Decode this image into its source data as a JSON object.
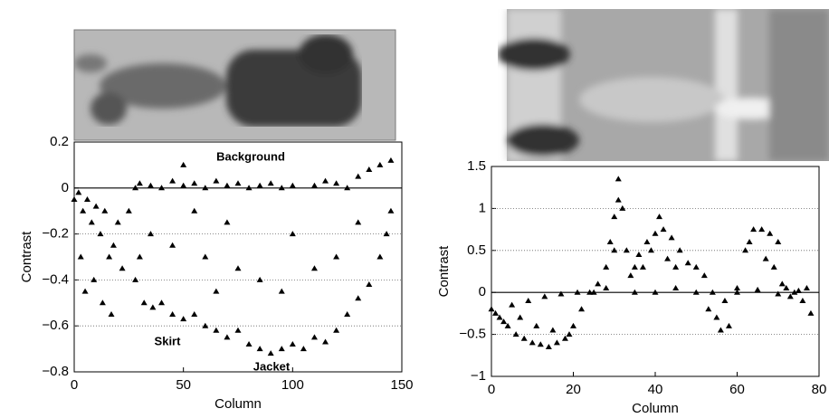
{
  "chart_data": [
    {
      "type": "scatter",
      "xlabel": "Column",
      "ylabel": "Contrast",
      "color": "#000000",
      "marker": "triangle",
      "xlim": [
        0,
        150
      ],
      "xticks": [
        0,
        50,
        100,
        150
      ],
      "ylim": [
        -0.8,
        0.2
      ],
      "yticks": [
        0.2,
        0,
        {
          "value": -0.2,
          "label": "−0.2"
        },
        {
          "value": -0.4,
          "label": "−0.4"
        },
        {
          "value": -0.6,
          "label": "−0.6"
        },
        {
          "value": -0.8,
          "label": "−0.8"
        }
      ],
      "grid": true,
      "annotations": [
        "Background",
        "Skirt",
        "Jacket"
      ],
      "x": [
        0,
        2,
        4,
        6,
        8,
        10,
        12,
        14,
        16,
        18,
        20,
        3,
        5,
        9,
        13,
        17,
        22,
        25,
        28,
        30,
        35,
        40,
        45,
        50,
        55,
        60,
        65,
        70,
        75,
        80,
        85,
        90,
        95,
        100,
        110,
        115,
        120,
        125,
        130,
        135,
        140,
        145,
        28,
        32,
        36,
        40,
        45,
        50,
        55,
        60,
        65,
        70,
        75,
        80,
        85,
        90,
        95,
        100,
        105,
        110,
        115,
        120,
        125,
        130,
        135,
        140,
        143,
        145,
        35,
        45,
        55,
        60,
        70,
        75,
        85,
        95,
        100,
        110,
        120,
        130,
        30,
        50,
        65
      ],
      "values": [
        -0.05,
        -0.02,
        -0.1,
        -0.05,
        -0.15,
        -0.08,
        -0.2,
        -0.1,
        -0.3,
        -0.25,
        -0.15,
        -0.3,
        -0.45,
        -0.4,
        -0.5,
        -0.55,
        -0.35,
        -0.1,
        0,
        0.02,
        0.01,
        0,
        0.03,
        0.01,
        0.02,
        0,
        0.03,
        0.01,
        0.02,
        0,
        0.01,
        0.02,
        0,
        0.01,
        0.01,
        0.03,
        0.02,
        0,
        0.05,
        0.08,
        0.1,
        0.12,
        -0.4,
        -0.5,
        -0.52,
        -0.5,
        -0.55,
        -0.57,
        -0.55,
        -0.6,
        -0.62,
        -0.65,
        -0.62,
        -0.68,
        -0.7,
        -0.72,
        -0.7,
        -0.68,
        -0.7,
        -0.65,
        -0.67,
        -0.62,
        -0.55,
        -0.48,
        -0.42,
        -0.3,
        -0.2,
        -0.1,
        -0.2,
        -0.25,
        -0.1,
        -0.3,
        -0.15,
        -0.35,
        -0.4,
        -0.45,
        -0.2,
        -0.35,
        -0.3,
        -0.15,
        -0.3,
        0.1,
        -0.45
      ]
    },
    {
      "type": "scatter",
      "xlabel": "Column",
      "ylabel": "Contrast",
      "color": "#000000",
      "marker": "triangle",
      "xlim": [
        0,
        80
      ],
      "xticks": [
        0,
        20,
        40,
        60,
        80
      ],
      "ylim": [
        -1,
        1.5
      ],
      "yticks": [
        1.5,
        1,
        0.5,
        0,
        {
          "value": -0.5,
          "label": "−0.5"
        },
        {
          "value": -1,
          "label": "−1"
        }
      ],
      "grid": true,
      "x": [
        0,
        2,
        4,
        6,
        8,
        10,
        12,
        14,
        16,
        18,
        20,
        22,
        24,
        1,
        5,
        9,
        13,
        17,
        21,
        3,
        7,
        11,
        15,
        19,
        26,
        28,
        29,
        30,
        31,
        32,
        33,
        34,
        30,
        31,
        28,
        35,
        36,
        38,
        40,
        42,
        44,
        46,
        37,
        39,
        41,
        43,
        45,
        48,
        50,
        52,
        54,
        55,
        56,
        58,
        53,
        57,
        60,
        62,
        64,
        66,
        68,
        70,
        63,
        67,
        69,
        71,
        72,
        74,
        76,
        78,
        77,
        73,
        60,
        50,
        45,
        40,
        35,
        25,
        65,
        70,
        75
      ],
      "values": [
        -0.2,
        -0.3,
        -0.4,
        -0.5,
        -0.55,
        -0.6,
        -0.62,
        -0.65,
        -0.6,
        -0.55,
        -0.4,
        -0.2,
        0,
        -0.25,
        -0.15,
        -0.1,
        -0.05,
        -0.02,
        0,
        -0.35,
        -0.3,
        -0.4,
        -0.45,
        -0.5,
        0.1,
        0.3,
        0.6,
        0.9,
        1.1,
        1.0,
        0.5,
        0.2,
        0.5,
        1.35,
        0.05,
        0.3,
        0.45,
        0.6,
        0.7,
        0.75,
        0.65,
        0.5,
        0.3,
        0.5,
        0.9,
        0.4,
        0.3,
        0.35,
        0.3,
        0.2,
        0,
        -0.3,
        -0.45,
        -0.4,
        -0.2,
        -0.1,
        0.05,
        0.5,
        0.75,
        0.75,
        0.7,
        0.6,
        0.6,
        0.4,
        0.3,
        0.1,
        0.05,
        0,
        -0.1,
        -0.25,
        0.05,
        -0.05,
        0,
        0,
        0.05,
        0,
        0,
        0,
        0.03,
        -0.02,
        0.02
      ]
    }
  ]
}
